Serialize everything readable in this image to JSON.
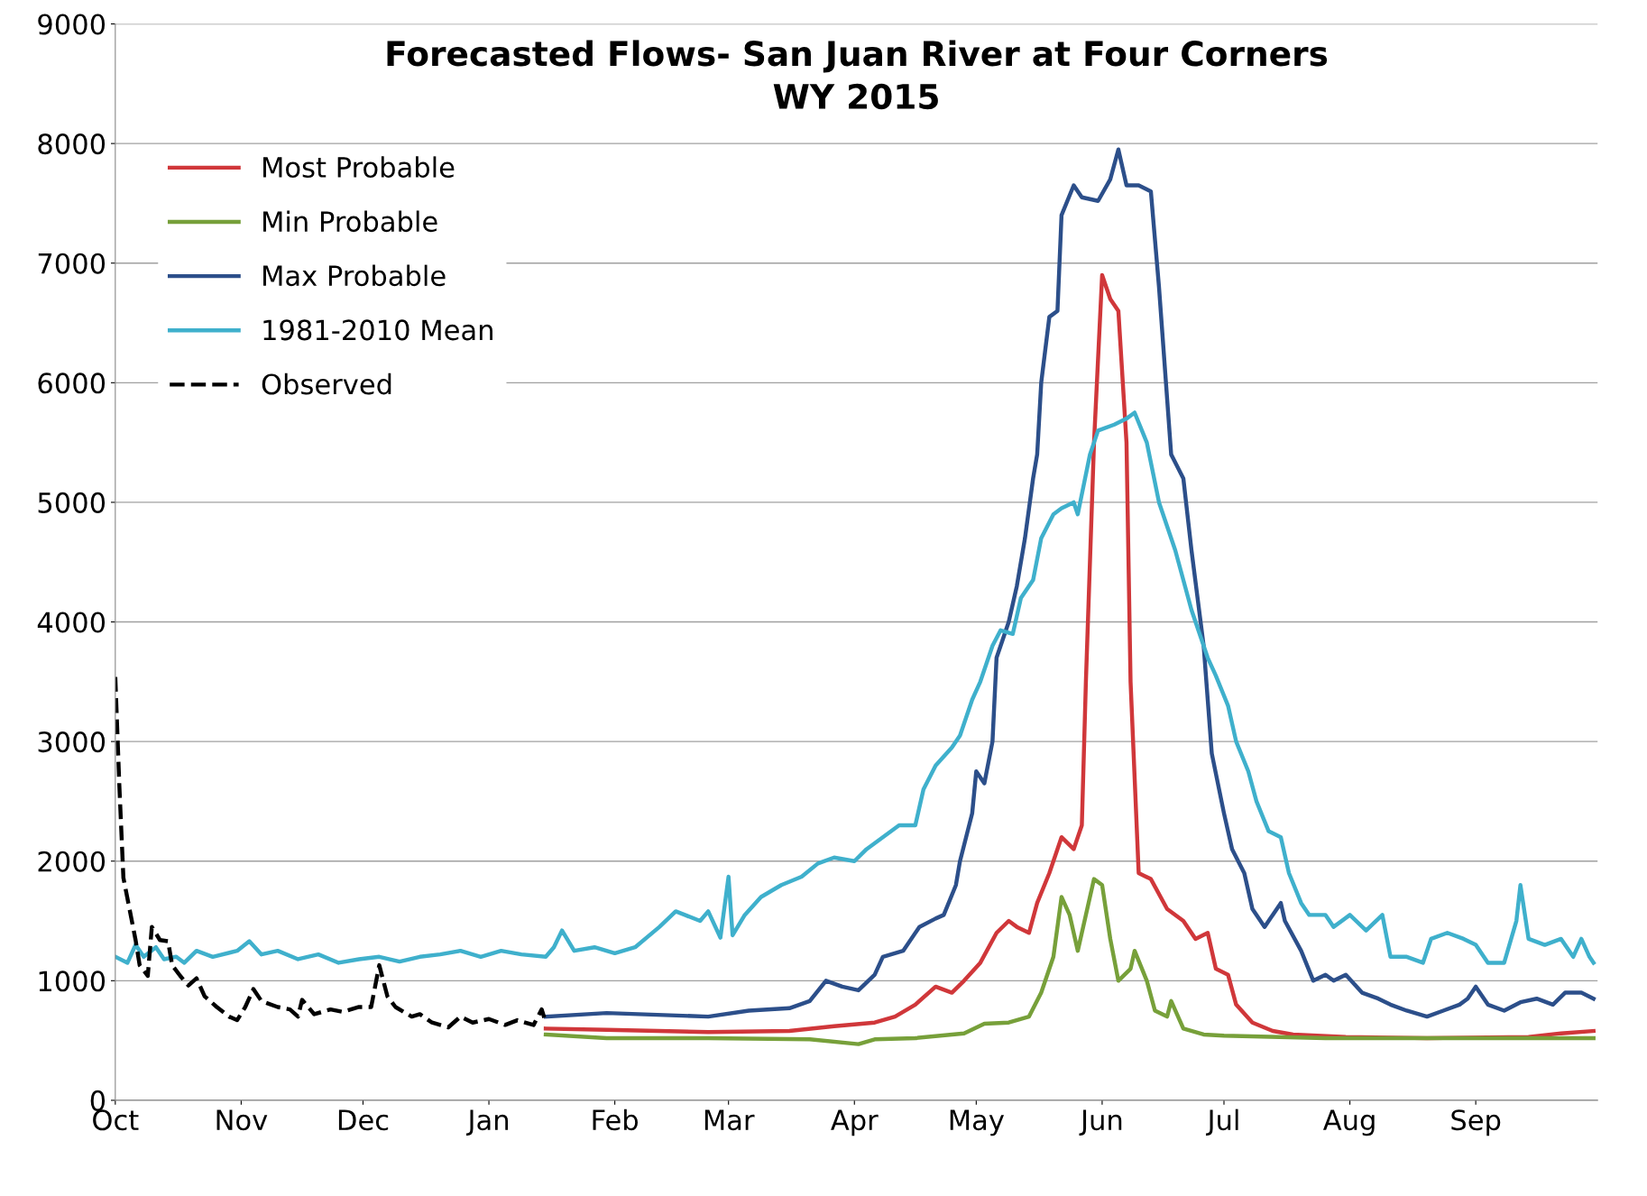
{
  "chart_data": {
    "type": "line",
    "title": "Forecasted Flows- San Juan River at Four Corners\nWY 2015",
    "xlim": [
      "2014-10-01",
      "2015-10-01"
    ],
    "xticks": [
      {
        "value": "2014-10-01",
        "label": "Oct"
      },
      {
        "value": "2014-11-01",
        "label": "Nov"
      },
      {
        "value": "2014-12-01",
        "label": "Dec"
      },
      {
        "value": "2015-01-01",
        "label": "Jan"
      },
      {
        "value": "2015-02-01",
        "label": "Feb"
      },
      {
        "value": "2015-03-01",
        "label": "Mar"
      },
      {
        "value": "2015-04-01",
        "label": "Apr"
      },
      {
        "value": "2015-05-01",
        "label": "May"
      },
      {
        "value": "2015-06-01",
        "label": "Jun"
      },
      {
        "value": "2015-07-01",
        "label": "Jul"
      },
      {
        "value": "2015-08-01",
        "label": "Aug"
      },
      {
        "value": "2015-09-01",
        "label": "Sep"
      }
    ],
    "ylim": [
      0,
      9000
    ],
    "yticks": [
      0,
      1000,
      2000,
      3000,
      4000,
      5000,
      6000,
      7000,
      8000,
      9000
    ],
    "grid": "y",
    "legend": "top left",
    "marker": "none",
    "series": [
      {
        "name": "Most Probable",
        "color": "#d0373a",
        "line_style": "solid",
        "x": [
          "2015-01-15",
          "2015-01-30",
          "2015-02-24",
          "2015-03-16",
          "2015-03-27",
          "2015-04-06",
          "2015-04-11",
          "2015-04-16",
          "2015-04-21",
          "2015-04-25",
          "2015-04-28",
          "2015-05-02",
          "2015-05-06",
          "2015-05-09",
          "2015-05-11",
          "2015-05-14",
          "2015-05-16",
          "2015-05-19",
          "2015-05-22",
          "2015-05-25",
          "2015-05-27",
          "2015-05-28",
          "2015-05-30",
          "2015-06-01",
          "2015-06-03",
          "2015-06-05",
          "2015-06-07",
          "2015-06-08",
          "2015-06-10",
          "2015-06-13",
          "2015-06-17",
          "2015-06-21",
          "2015-06-24",
          "2015-06-27",
          "2015-06-29",
          "2015-07-02",
          "2015-07-04",
          "2015-07-08",
          "2015-07-13",
          "2015-07-18",
          "2015-07-31",
          "2015-08-20",
          "2015-09-14",
          "2015-09-22",
          "2015-09-30"
        ],
        "values": [
          600,
          590,
          570,
          580,
          620,
          650,
          700,
          800,
          950,
          900,
          1000,
          1150,
          1400,
          1500,
          1450,
          1400,
          1650,
          1900,
          2200,
          2100,
          2300,
          3500,
          5500,
          6900,
          6700,
          6600,
          5500,
          3500,
          1900,
          1850,
          1600,
          1500,
          1350,
          1400,
          1100,
          1050,
          800,
          650,
          580,
          550,
          530,
          520,
          530,
          560,
          580
        ]
      },
      {
        "name": "Min Probable",
        "color": "#77a03a",
        "line_style": "solid",
        "x": [
          "2015-01-15",
          "2015-01-30",
          "2015-02-24",
          "2015-03-21",
          "2015-04-02",
          "2015-04-06",
          "2015-04-16",
          "2015-04-28",
          "2015-05-03",
          "2015-05-09",
          "2015-05-14",
          "2015-05-17",
          "2015-05-20",
          "2015-05-22",
          "2015-05-24",
          "2015-05-26",
          "2015-05-27",
          "2015-05-30",
          "2015-06-01",
          "2015-06-03",
          "2015-06-05",
          "2015-06-08",
          "2015-06-09",
          "2015-06-12",
          "2015-06-14",
          "2015-06-17",
          "2015-06-18",
          "2015-06-21",
          "2015-06-26",
          "2015-07-01",
          "2015-07-26",
          "2015-08-20",
          "2015-09-30"
        ],
        "values": [
          550,
          520,
          520,
          510,
          470,
          510,
          520,
          560,
          640,
          650,
          700,
          900,
          1200,
          1700,
          1550,
          1250,
          1400,
          1850,
          1800,
          1350,
          1000,
          1100,
          1250,
          1000,
          750,
          700,
          830,
          600,
          550,
          540,
          520,
          520,
          520
        ]
      },
      {
        "name": "Max Probable",
        "color": "#2c4f8a",
        "line_style": "solid",
        "x": [
          "2015-01-15",
          "2015-01-30",
          "2015-02-24",
          "2015-03-06",
          "2015-03-16",
          "2015-03-21",
          "2015-03-25",
          "2015-03-29",
          "2015-04-02",
          "2015-04-06",
          "2015-04-08",
          "2015-04-13",
          "2015-04-17",
          "2015-04-21",
          "2015-04-23",
          "2015-04-26",
          "2015-04-27",
          "2015-04-30",
          "2015-05-01",
          "2015-05-03",
          "2015-05-05",
          "2015-05-06",
          "2015-05-09",
          "2015-05-11",
          "2015-05-13",
          "2015-05-15",
          "2015-05-16",
          "2015-05-17",
          "2015-05-19",
          "2015-05-21",
          "2015-05-22",
          "2015-05-25",
          "2015-05-27",
          "2015-05-31",
          "2015-06-03",
          "2015-06-05",
          "2015-06-07",
          "2015-06-10",
          "2015-06-13",
          "2015-06-15",
          "2015-06-18",
          "2015-06-21",
          "2015-06-23",
          "2015-06-26",
          "2015-06-28",
          "2015-07-01",
          "2015-07-03",
          "2015-07-06",
          "2015-07-08",
          "2015-07-11",
          "2015-07-13",
          "2015-07-15",
          "2015-07-16",
          "2015-07-20",
          "2015-07-23",
          "2015-07-26",
          "2015-07-28",
          "2015-07-31",
          "2015-08-04",
          "2015-08-08",
          "2015-08-11",
          "2015-08-15",
          "2015-08-20",
          "2015-08-24",
          "2015-08-28",
          "2015-08-30",
          "2015-09-01",
          "2015-09-04",
          "2015-09-08",
          "2015-09-12",
          "2015-09-16",
          "2015-09-20",
          "2015-09-23",
          "2015-09-27",
          "2015-09-30"
        ],
        "values": [
          700,
          730,
          700,
          750,
          770,
          830,
          1000,
          950,
          920,
          1050,
          1200,
          1250,
          1450,
          1520,
          1550,
          1800,
          2000,
          2400,
          2750,
          2650,
          3000,
          3700,
          4000,
          4300,
          4700,
          5200,
          5400,
          6000,
          6550,
          6600,
          7400,
          7650,
          7550,
          7520,
          7700,
          7950,
          7650,
          7650,
          7600,
          6800,
          5400,
          5200,
          4600,
          3800,
          2900,
          2400,
          2100,
          1900,
          1600,
          1450,
          1550,
          1650,
          1500,
          1250,
          1000,
          1050,
          1000,
          1050,
          900,
          850,
          800,
          750,
          700,
          750,
          800,
          850,
          950,
          800,
          750,
          820,
          850,
          800,
          900,
          900,
          850
        ]
      },
      {
        "name": "1981-2010 Mean",
        "color": "#3fb0cc",
        "line_style": "solid",
        "x": [
          "2014-10-01",
          "2014-10-04",
          "2014-10-06",
          "2014-10-08",
          "2014-10-11",
          "2014-10-13",
          "2014-10-16",
          "2014-10-18",
          "2014-10-21",
          "2014-10-25",
          "2014-10-31",
          "2014-11-03",
          "2014-11-06",
          "2014-11-10",
          "2014-11-15",
          "2014-11-20",
          "2014-11-25",
          "2014-11-30",
          "2014-12-05",
          "2014-12-10",
          "2014-12-15",
          "2014-12-20",
          "2014-12-25",
          "2014-12-30",
          "2015-01-04",
          "2015-01-09",
          "2015-01-15",
          "2015-01-17",
          "2015-01-19",
          "2015-01-22",
          "2015-01-27",
          "2015-02-01",
          "2015-02-06",
          "2015-02-12",
          "2015-02-16",
          "2015-02-22",
          "2015-02-24",
          "2015-02-27",
          "2015-03-01",
          "2015-03-02",
          "2015-03-05",
          "2015-03-09",
          "2015-03-14",
          "2015-03-19",
          "2015-03-23",
          "2015-03-27",
          "2015-04-01",
          "2015-04-04",
          "2015-04-08",
          "2015-04-12",
          "2015-04-16",
          "2015-04-18",
          "2015-04-21",
          "2015-04-25",
          "2015-04-27",
          "2015-04-30",
          "2015-05-02",
          "2015-05-05",
          "2015-05-07",
          "2015-05-10",
          "2015-05-12",
          "2015-05-15",
          "2015-05-17",
          "2015-05-20",
          "2015-05-22",
          "2015-05-25",
          "2015-05-26",
          "2015-05-29",
          "2015-05-31",
          "2015-06-04",
          "2015-06-07",
          "2015-06-09",
          "2015-06-12",
          "2015-06-15",
          "2015-06-19",
          "2015-06-23",
          "2015-06-27",
          "2015-06-29",
          "2015-07-02",
          "2015-07-04",
          "2015-07-07",
          "2015-07-09",
          "2015-07-12",
          "2015-07-15",
          "2015-07-17",
          "2015-07-20",
          "2015-07-22",
          "2015-07-26",
          "2015-07-28",
          "2015-08-01",
          "2015-08-05",
          "2015-08-09",
          "2015-08-11",
          "2015-08-15",
          "2015-08-19",
          "2015-08-21",
          "2015-08-25",
          "2015-08-29",
          "2015-09-01",
          "2015-09-04",
          "2015-09-08",
          "2015-09-11",
          "2015-09-12",
          "2015-09-14",
          "2015-09-18",
          "2015-09-22",
          "2015-09-25",
          "2015-09-27",
          "2015-09-29",
          "2015-09-30"
        ],
        "values": [
          1200,
          1150,
          1300,
          1200,
          1280,
          1180,
          1200,
          1150,
          1250,
          1200,
          1250,
          1330,
          1220,
          1250,
          1180,
          1220,
          1150,
          1180,
          1200,
          1160,
          1200,
          1220,
          1250,
          1200,
          1250,
          1220,
          1200,
          1280,
          1420,
          1250,
          1280,
          1230,
          1280,
          1450,
          1580,
          1500,
          1580,
          1360,
          1870,
          1380,
          1550,
          1700,
          1800,
          1870,
          1980,
          2030,
          2000,
          2100,
          2200,
          2300,
          2300,
          2600,
          2800,
          2950,
          3050,
          3350,
          3500,
          3800,
          3930,
          3900,
          4200,
          4350,
          4700,
          4900,
          4950,
          5000,
          4900,
          5400,
          5600,
          5650,
          5700,
          5750,
          5500,
          5000,
          4600,
          4100,
          3700,
          3550,
          3300,
          3000,
          2750,
          2500,
          2250,
          2200,
          1900,
          1650,
          1550,
          1550,
          1450,
          1550,
          1420,
          1550,
          1200,
          1200,
          1150,
          1350,
          1400,
          1350,
          1300,
          1150,
          1150,
          1500,
          1800,
          1350,
          1300,
          1350,
          1200,
          1350,
          1200,
          1150
        ]
      },
      {
        "name": "Observed",
        "color": "#000000",
        "line_style": "dashed",
        "x": [
          "2014-10-01",
          "2014-10-02",
          "2014-10-03",
          "2014-10-06",
          "2014-10-07",
          "2014-10-09",
          "2014-10-10",
          "2014-10-12",
          "2014-10-14",
          "2014-10-15",
          "2014-10-17",
          "2014-10-19",
          "2014-10-21",
          "2014-10-23",
          "2014-10-26",
          "2014-10-29",
          "2014-10-31",
          "2014-11-02",
          "2014-11-04",
          "2014-11-06",
          "2014-11-10",
          "2014-11-13",
          "2014-11-15",
          "2014-11-16",
          "2014-11-19",
          "2014-11-23",
          "2014-11-26",
          "2014-11-30",
          "2014-12-03",
          "2014-12-05",
          "2014-12-07",
          "2014-12-09",
          "2014-12-13",
          "2014-12-15",
          "2014-12-18",
          "2014-12-22",
          "2014-12-25",
          "2014-12-28",
          "2015-01-01",
          "2015-01-05",
          "2015-01-08",
          "2015-01-12",
          "2015-01-14",
          "2015-01-15"
        ],
        "values": [
          3540,
          2630,
          1860,
          1340,
          1130,
          1040,
          1450,
          1340,
          1330,
          1130,
          1040,
          960,
          1020,
          870,
          780,
          700,
          670,
          780,
          930,
          830,
          780,
          760,
          700,
          840,
          720,
          760,
          740,
          780,
          780,
          1130,
          870,
          780,
          700,
          720,
          650,
          610,
          700,
          650,
          680,
          630,
          670,
          630,
          760,
          650
        ]
      }
    ]
  }
}
